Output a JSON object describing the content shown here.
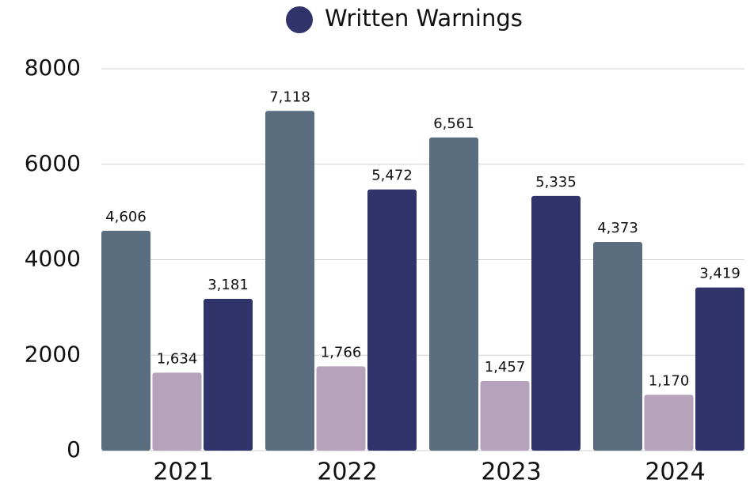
{
  "chart_data": {
    "type": "bar",
    "categories": [
      "2021",
      "2022",
      "2023",
      "2024"
    ],
    "series": [
      {
        "color": "#5b6e80",
        "values": [
          4606,
          7118,
          6561,
          4373
        ],
        "value_labels": [
          "4,606",
          "7,118",
          "6,561",
          "4,373"
        ]
      },
      {
        "color": "#b6a3bb",
        "values": [
          1634,
          1766,
          1457,
          1170
        ],
        "value_labels": [
          "1,634",
          "1,766",
          "1,457",
          "1,170"
        ]
      },
      {
        "name": "Written Warnings",
        "color": "#31346b",
        "values": [
          3181,
          5472,
          5335,
          3419
        ],
        "value_labels": [
          "3,181",
          "5,472",
          "5,335",
          "3,419"
        ]
      }
    ],
    "ylim": [
      0,
      8000
    ],
    "yticks": [
      0,
      2000,
      4000,
      6000,
      8000
    ],
    "grid": true,
    "legend": "top"
  }
}
